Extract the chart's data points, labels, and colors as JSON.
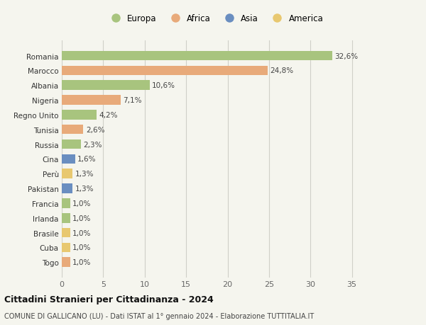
{
  "categories": [
    "Togo",
    "Cuba",
    "Brasile",
    "Irlanda",
    "Francia",
    "Pakistan",
    "Perù",
    "Cina",
    "Russia",
    "Tunisia",
    "Regno Unito",
    "Nigeria",
    "Albania",
    "Marocco",
    "Romania"
  ],
  "values": [
    1.0,
    1.0,
    1.0,
    1.0,
    1.0,
    1.3,
    1.3,
    1.6,
    2.3,
    2.6,
    4.2,
    7.1,
    10.6,
    24.8,
    32.6
  ],
  "labels": [
    "1,0%",
    "1,0%",
    "1,0%",
    "1,0%",
    "1,0%",
    "1,3%",
    "1,3%",
    "1,6%",
    "2,3%",
    "2,6%",
    "4,2%",
    "7,1%",
    "10,6%",
    "24,8%",
    "32,6%"
  ],
  "continents": [
    "Africa",
    "America",
    "America",
    "Europa",
    "Europa",
    "Asia",
    "America",
    "Asia",
    "Europa",
    "Africa",
    "Europa",
    "Africa",
    "Europa",
    "Africa",
    "Europa"
  ],
  "continent_colors": {
    "Europa": "#a8c47e",
    "Africa": "#e8aa7a",
    "Asia": "#6a8ec0",
    "America": "#e8c870"
  },
  "legend_order": [
    "Europa",
    "Africa",
    "Asia",
    "America"
  ],
  "title": "Cittadini Stranieri per Cittadinanza - 2024",
  "subtitle": "COMUNE DI GALLICANO (LU) - Dati ISTAT al 1° gennaio 2024 - Elaborazione TUTTITALIA.IT",
  "xlim": [
    0,
    37
  ],
  "xticks": [
    0,
    5,
    10,
    15,
    20,
    25,
    30,
    35
  ],
  "background_color": "#f5f5ee",
  "grid_color": "#d0d0c8",
  "bar_height": 0.65
}
